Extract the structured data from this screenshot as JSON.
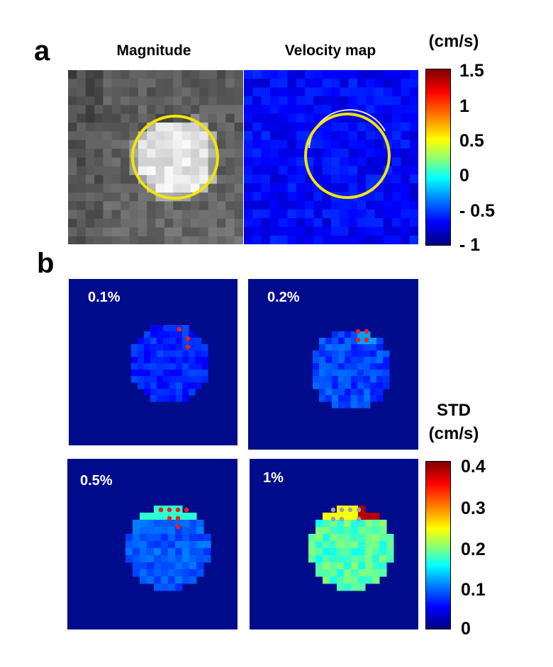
{
  "panel_a": {
    "letter": "a",
    "titles": {
      "magnitude": "Magnitude",
      "velocity": "Velocity map"
    },
    "colorbar": {
      "unit": "(cm/s)",
      "ticks": [
        "1.5",
        "1",
        "0.5",
        "0",
        "- 0.5",
        "- 1"
      ],
      "range": [
        -1,
        1.5
      ]
    }
  },
  "panel_b": {
    "letter": "b",
    "maps": [
      {
        "label": "0.1%"
      },
      {
        "label": "0.2%"
      },
      {
        "label": "0.5%"
      },
      {
        "label": "1%"
      }
    ],
    "colorbar": {
      "title": "STD",
      "unit": "(cm/s)",
      "ticks": [
        "0.4",
        "0.3",
        "0.2",
        "0.1",
        "0"
      ],
      "range": [
        0,
        0.4
      ]
    }
  },
  "colors": {
    "roi_circle": "#f2e600",
    "marker_red": "#e8201c",
    "marker_gray": "#a0a0a0",
    "background_map": "#000c8c"
  }
}
